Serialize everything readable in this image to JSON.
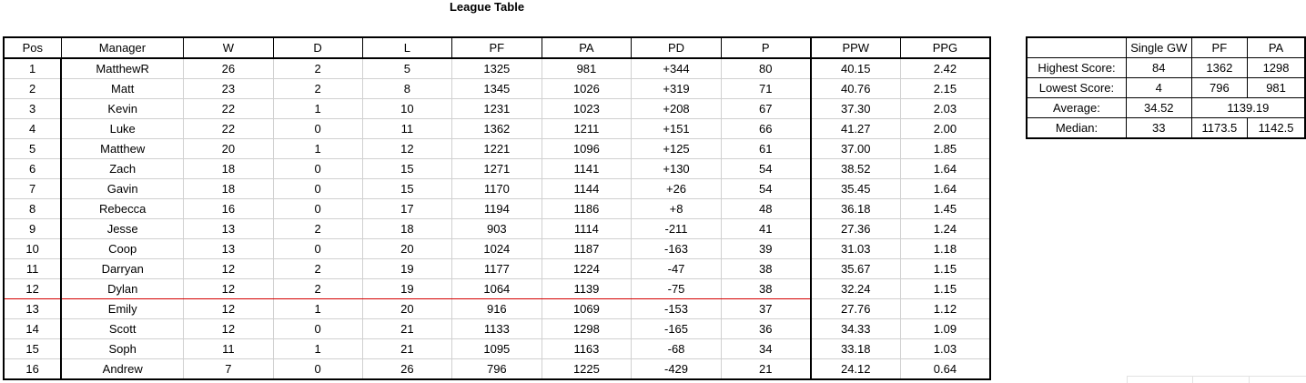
{
  "title": "League Table",
  "league": {
    "headers": [
      "Pos",
      "Manager",
      "W",
      "D",
      "L",
      "PF",
      "PA",
      "PD",
      "P",
      "PPW",
      "PPG"
    ],
    "rows": [
      [
        "1",
        "MatthewR",
        "26",
        "2",
        "5",
        "1325",
        "981",
        "+344",
        "80",
        "40.15",
        "2.42"
      ],
      [
        "2",
        "Matt",
        "23",
        "2",
        "8",
        "1345",
        "1026",
        "+319",
        "71",
        "40.76",
        "2.15"
      ],
      [
        "3",
        "Kevin",
        "22",
        "1",
        "10",
        "1231",
        "1023",
        "+208",
        "67",
        "37.30",
        "2.03"
      ],
      [
        "4",
        "Luke",
        "22",
        "0",
        "11",
        "1362",
        "1211",
        "+151",
        "66",
        "41.27",
        "2.00"
      ],
      [
        "5",
        "Matthew",
        "20",
        "1",
        "12",
        "1221",
        "1096",
        "+125",
        "61",
        "37.00",
        "1.85"
      ],
      [
        "6",
        "Zach",
        "18",
        "0",
        "15",
        "1271",
        "1141",
        "+130",
        "54",
        "38.52",
        "1.64"
      ],
      [
        "7",
        "Gavin",
        "18",
        "0",
        "15",
        "1170",
        "1144",
        "+26",
        "54",
        "35.45",
        "1.64"
      ],
      [
        "8",
        "Rebecca",
        "16",
        "0",
        "17",
        "1194",
        "1186",
        "+8",
        "48",
        "36.18",
        "1.45"
      ],
      [
        "9",
        "Jesse",
        "13",
        "2",
        "18",
        "903",
        "1114",
        "-211",
        "41",
        "27.36",
        "1.24"
      ],
      [
        "10",
        "Coop",
        "13",
        "0",
        "20",
        "1024",
        "1187",
        "-163",
        "39",
        "31.03",
        "1.18"
      ],
      [
        "11",
        "Darryan",
        "12",
        "2",
        "19",
        "1177",
        "1224",
        "-47",
        "38",
        "35.67",
        "1.15"
      ],
      [
        "12",
        "Dylan",
        "12",
        "2",
        "19",
        "1064",
        "1139",
        "-75",
        "38",
        "32.24",
        "1.15"
      ],
      [
        "13",
        "Emily",
        "12",
        "1",
        "20",
        "916",
        "1069",
        "-153",
        "37",
        "27.76",
        "1.12"
      ],
      [
        "14",
        "Scott",
        "12",
        "0",
        "21",
        "1133",
        "1298",
        "-165",
        "36",
        "34.33",
        "1.09"
      ],
      [
        "15",
        "Soph",
        "11",
        "1",
        "21",
        "1095",
        "1163",
        "-68",
        "34",
        "33.18",
        "1.03"
      ],
      [
        "16",
        "Andrew",
        "7",
        "0",
        "26",
        "796",
        "1225",
        "-429",
        "21",
        "24.12",
        "0.64"
      ]
    ]
  },
  "stats": {
    "headers": [
      "Single GW",
      "PF",
      "PA"
    ],
    "highest": {
      "label": "Highest Score:",
      "gw": "84",
      "pf": "1362",
      "pa": "1298"
    },
    "lowest": {
      "label": "Lowest Score:",
      "gw": "4",
      "pf": "796",
      "pa": "981"
    },
    "average": {
      "label": "Average:",
      "gw": "34.52",
      "pfpa": "1139.19"
    },
    "median": {
      "label": "Median:",
      "gw": "33",
      "pf": "1173.5",
      "pa": "1142.5"
    }
  },
  "colors": {
    "relegation_line": "#d40000",
    "grid": "#d0d0d0"
  }
}
